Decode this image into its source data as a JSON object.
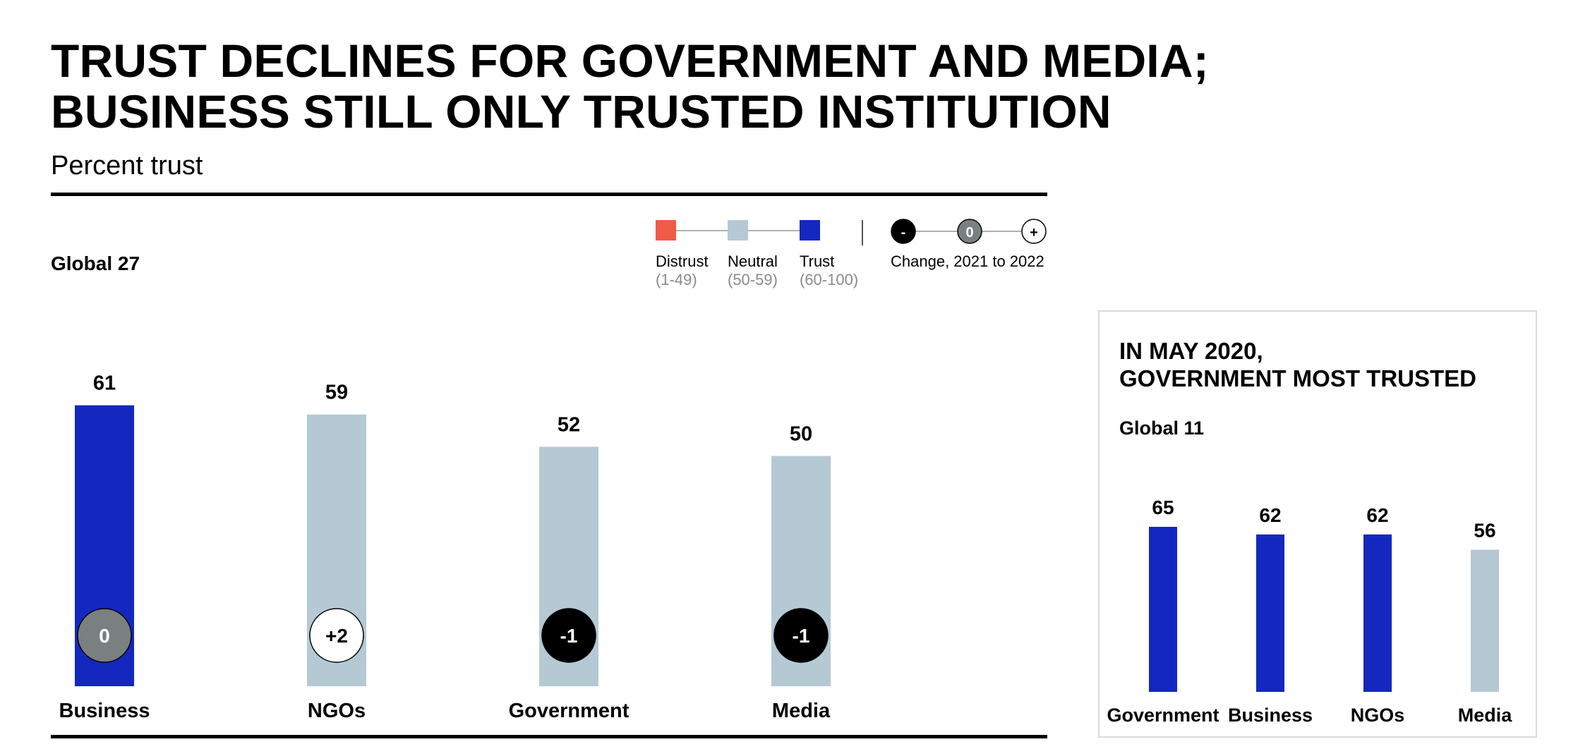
{
  "header": {
    "title_line1": "TRUST DECLINES FOR GOVERNMENT AND MEDIA;",
    "title_line2": "BUSINESS STILL ONLY TRUSTED INSTITUTION",
    "subtitle": "Percent trust"
  },
  "legend": {
    "distrust_label": "Distrust",
    "distrust_range": "(1-49)",
    "neutral_label": "Neutral",
    "neutral_range": "(50-59)",
    "trust_label": "Trust",
    "trust_range": "(60-100)",
    "change_symbols": [
      "-",
      "0",
      "+"
    ],
    "change_label": "Change, 2021 to 2022"
  },
  "colors": {
    "distrust": "#ee5c47",
    "neutral": "#b5c9d5",
    "trust": "#1428c0",
    "change_negative": "#000000",
    "change_zero": "#7a8080",
    "change_positive": "#ffffff"
  },
  "chart_data": [
    {
      "type": "bar",
      "region": "Global 27",
      "categories": [
        "Business",
        "NGOs",
        "Government",
        "Media"
      ],
      "values": [
        61,
        59,
        52,
        50
      ],
      "change": [
        "0",
        "+2",
        "-1",
        "-1"
      ],
      "ylim": [
        0,
        100
      ]
    },
    {
      "type": "bar",
      "title_line1": "IN MAY 2020,",
      "title_line2": "GOVERNMENT MOST TRUSTED",
      "region": "Global 11",
      "categories": [
        "Government",
        "Business",
        "NGOs",
        "Media"
      ],
      "values": [
        65,
        62,
        62,
        56
      ],
      "ylim": [
        0,
        100
      ]
    }
  ]
}
